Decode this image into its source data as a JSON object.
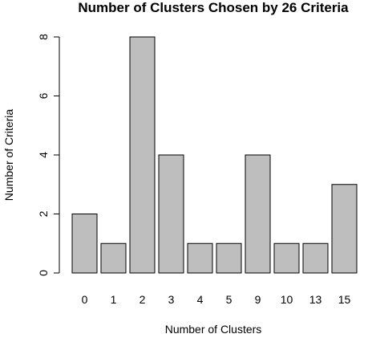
{
  "chart_data": {
    "type": "bar",
    "title": "Number of Clusters Chosen by 26 Criteria",
    "xlabel": "Number of Clusters",
    "ylabel": "Number of Criteria",
    "categories": [
      "0",
      "1",
      "2",
      "3",
      "4",
      "5",
      "9",
      "10",
      "13",
      "15"
    ],
    "values": [
      2,
      1,
      8,
      4,
      1,
      1,
      4,
      1,
      1,
      3
    ],
    "ylim": [
      0,
      8
    ],
    "yticks": [
      "0",
      "2",
      "4",
      "6",
      "8"
    ],
    "bar_color": "#bebebe",
    "grid": false
  }
}
